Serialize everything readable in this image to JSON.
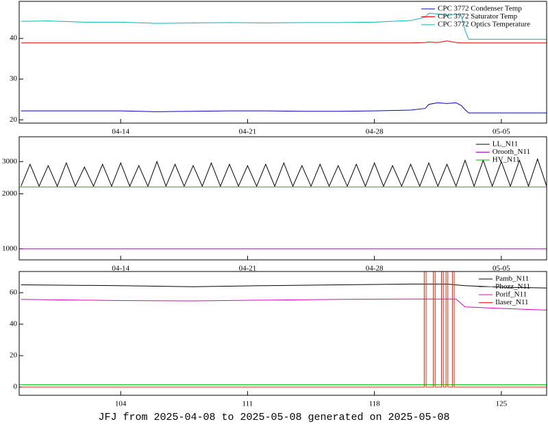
{
  "chart_data": [
    {
      "type": "line",
      "xlim": [
        98.4,
        127.5
      ],
      "ylim": [
        19.2,
        49.1
      ],
      "yticks": [
        20,
        30,
        40
      ],
      "xticks": [
        {
          "value": 104,
          "label": "04-14"
        },
        {
          "value": 111,
          "label": "04-21"
        },
        {
          "value": 118,
          "label": "04-28"
        },
        {
          "value": 125,
          "label": "05-05"
        }
      ],
      "legend": "upper right",
      "series": [
        {
          "name": "CPC 3772 Condenser Temp",
          "color": "#0000c0",
          "x": [
            98.5,
            100,
            102,
            104,
            106,
            108,
            110,
            112,
            114,
            116,
            118,
            120,
            120.8,
            121,
            121.5,
            122,
            122.5,
            122.8,
            123,
            123.2,
            125,
            127.5
          ],
          "values": [
            22.2,
            22.2,
            22.2,
            22.2,
            22.0,
            22.1,
            22.2,
            22.2,
            22.1,
            22.1,
            22.2,
            22.4,
            22.8,
            23.8,
            24.2,
            24.0,
            24.2,
            23.5,
            22.5,
            21.7,
            21.7,
            21.7
          ]
        },
        {
          "name": "CPC 3772 Saturator Temp",
          "color": "#e00000",
          "x": [
            98.5,
            100,
            102,
            104,
            106,
            108,
            110,
            112,
            114,
            116,
            118,
            120,
            120.8,
            121,
            121.5,
            122,
            122.5,
            122.8,
            123,
            123.2,
            125,
            127.5
          ],
          "values": [
            38.9,
            38.9,
            38.9,
            38.9,
            38.9,
            38.9,
            38.9,
            38.9,
            38.9,
            38.9,
            38.9,
            38.9,
            39.0,
            39.1,
            39.0,
            39.4,
            39.0,
            38.9,
            38.9,
            38.9,
            38.9,
            38.9
          ]
        },
        {
          "name": "CPC 3772 Optics Temperature",
          "color": "#00b8b8",
          "x": [
            98.5,
            100,
            102,
            104,
            106,
            108,
            110,
            112,
            114,
            116,
            118,
            120,
            120.8,
            121,
            121.5,
            122,
            122.5,
            122.8,
            123,
            123.2,
            125,
            127.5
          ],
          "values": [
            44.2,
            44.3,
            44.0,
            44.0,
            43.7,
            43.8,
            43.9,
            43.8,
            43.9,
            43.9,
            44.0,
            44.4,
            45.2,
            46.2,
            46.0,
            45.6,
            46.0,
            45.5,
            42.0,
            39.8,
            39.8,
            39.8
          ]
        }
      ]
    },
    {
      "type": "line",
      "log_y": true,
      "xlim": [
        98.4,
        127.5
      ],
      "ylim": [
        870,
        4100
      ],
      "yticks": [
        1000,
        2000,
        3000
      ],
      "xticks": [
        {
          "value": 104,
          "label": "04-14"
        },
        {
          "value": 111,
          "label": "04-21"
        },
        {
          "value": 118,
          "label": "04-28"
        },
        {
          "value": 125,
          "label": "05-05"
        }
      ],
      "legend": "upper right",
      "series": [
        {
          "name": "LL_N11",
          "color": "#000000",
          "x": [
            98.5,
            99,
            99.5,
            100,
            100.5,
            101,
            101.5,
            102,
            102.5,
            103,
            103.5,
            104,
            104.5,
            105,
            105.5,
            106,
            106.5,
            107,
            107.5,
            108,
            108.5,
            109,
            109.5,
            110,
            110.5,
            111,
            111.5,
            112,
            112.5,
            113,
            113.5,
            114,
            114.5,
            115,
            115.5,
            116,
            116.5,
            117,
            117.5,
            118,
            118.5,
            119,
            119.5,
            120,
            120.5,
            121,
            121.5,
            122,
            122.5,
            123,
            123.5,
            124,
            124.5,
            125,
            125.5,
            126,
            126.5,
            127,
            127.5
          ],
          "values": [
            2200,
            2900,
            2200,
            2850,
            2200,
            2950,
            2200,
            2800,
            2200,
            2900,
            2200,
            2950,
            2200,
            2850,
            2200,
            3000,
            2200,
            2900,
            2200,
            2850,
            2200,
            2950,
            2200,
            2900,
            2200,
            2850,
            2200,
            2900,
            2200,
            2950,
            2200,
            2850,
            2200,
            2900,
            2200,
            2850,
            2200,
            2900,
            2200,
            2950,
            2200,
            2850,
            2200,
            2900,
            2200,
            2950,
            2200,
            2900,
            2200,
            3050,
            2200,
            3050,
            2200,
            3000,
            2200,
            3050,
            2200,
            3100,
            2200
          ]
        },
        {
          "name": "Orooth_N11",
          "color": "#a000c0",
          "x": [
            98.4,
            127.5
          ],
          "values": [
            1000,
            1000
          ]
        },
        {
          "name": "HV_N11",
          "color": "#00c000",
          "x": [
            98.4,
            127.5
          ],
          "values": [
            2180,
            2180
          ]
        }
      ]
    },
    {
      "type": "line",
      "xlim": [
        98.4,
        127.5
      ],
      "ylim": [
        -5.2,
        73.5
      ],
      "yticks": [
        0,
        20,
        40,
        60
      ],
      "xticks": [
        104,
        111,
        118,
        125
      ],
      "legend": "upper right",
      "series": [
        {
          "name": "Pamb_N11",
          "color": "#000000",
          "x": [
            98.5,
            104,
            108,
            112,
            116,
            120,
            122,
            123,
            125,
            127.5
          ],
          "values": [
            65,
            64.5,
            63.8,
            64.5,
            65,
            65.5,
            65.5,
            64.5,
            63.5,
            63
          ]
        },
        {
          "name": "Phozz_N11",
          "color": "#00c000",
          "x": [
            98.4,
            127.5
          ],
          "values": [
            1.5,
            1.5
          ]
        },
        {
          "name": "Porif_N11",
          "color": "#e000c0",
          "x": [
            98.5,
            104,
            108,
            112,
            116,
            120,
            122.5,
            123,
            125,
            127.5
          ],
          "values": [
            55.8,
            55,
            54.8,
            55.3,
            55.8,
            56,
            56,
            51,
            50,
            49
          ]
        },
        {
          "name": "Ilaser_N11",
          "color": "#ff2000",
          "x": [
            98.5,
            120.75,
            120.75,
            120.85,
            120.85,
            121.25,
            121.25,
            121.35,
            121.35,
            121.7,
            121.7,
            121.8,
            121.8,
            121.95,
            121.95,
            122.05,
            122.05,
            122.3,
            122.3,
            122.4,
            122.4,
            127.5
          ],
          "values": [
            0,
            0,
            80,
            80,
            0,
            0,
            80,
            80,
            0,
            0,
            80,
            80,
            0,
            0,
            80,
            80,
            0,
            0,
            80,
            80,
            0,
            0
          ]
        }
      ]
    }
  ],
  "caption": "JFJ from 2025-04-08 to 2025-05-08 generated on 2025-05-08"
}
